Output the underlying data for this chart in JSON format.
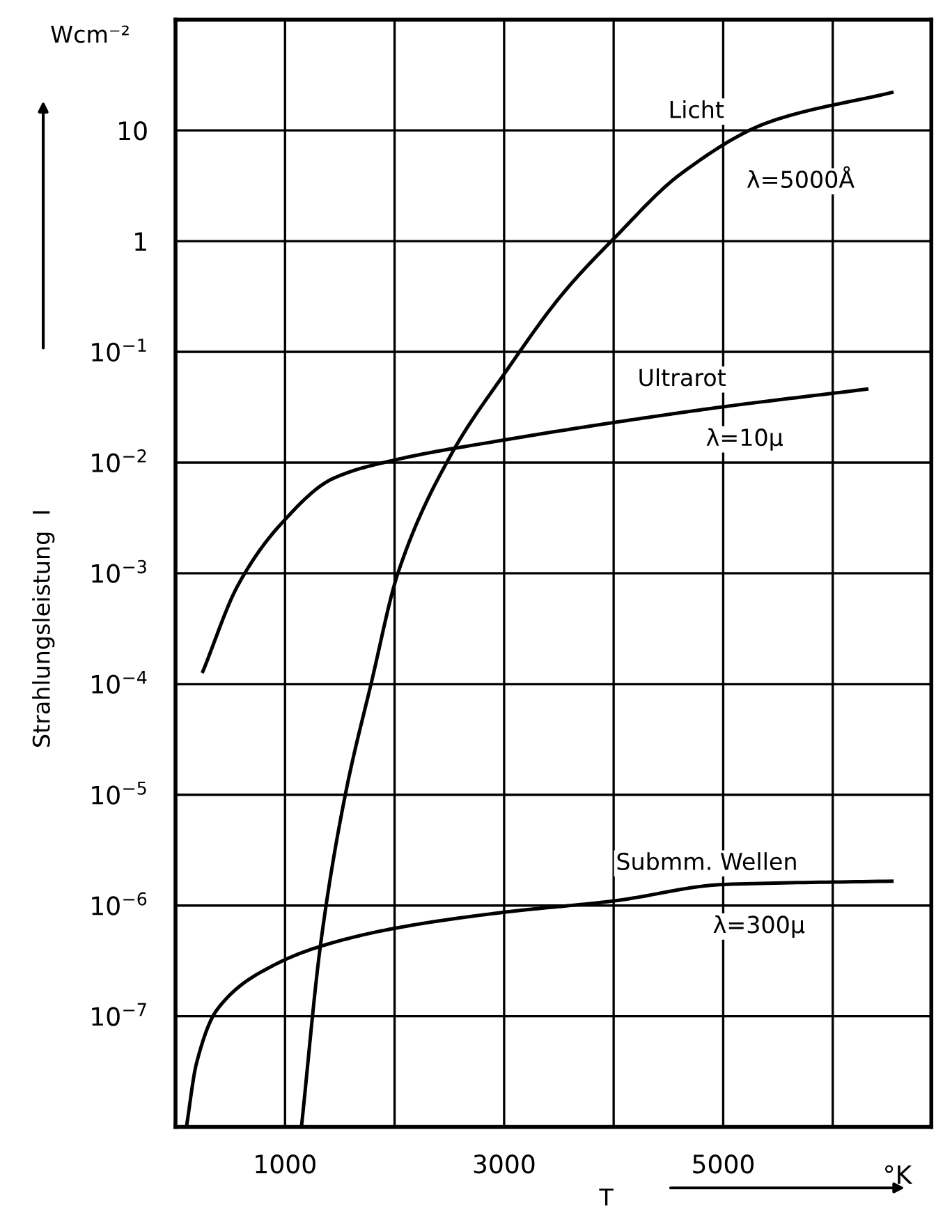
{
  "chart_data": {
    "type": "line",
    "xlabel": "T",
    "ylabel": "Strahlungsleistung  I",
    "series": [
      {
        "color": "#000000",
        "x": [
          1150,
          1325,
          1550,
          1790,
          2030,
          2520,
          3000,
          3540,
          4000,
          4620,
          5430,
          6540
        ],
        "values": [
          1e-08,
          4.5e-07,
          1e-05,
          0.000105,
          0.001,
          0.012,
          0.063,
          0.34,
          1.05,
          4.1,
          12,
          22
        ]
      },
      {
        "color": "#000000",
        "x": [
          250,
          570,
          950,
          1440,
          1990,
          3000,
          4000,
          5010,
          6310
        ],
        "values": [
          0.00013,
          0.00078,
          0.0027,
          0.0072,
          0.0105,
          0.016,
          0.023,
          0.032,
          0.046
        ]
      },
      {
        "color": "#000000",
        "x": [
          100,
          190,
          380,
          900,
          1330,
          1990,
          3000,
          4000,
          5010,
          6540
        ],
        "values": [
          1e-08,
          3.7e-08,
          1.15e-07,
          2.9e-07,
          4.3e-07,
          6.2e-07,
          8.7e-07,
          1.1e-06,
          1.55e-06,
          1.66e-06
        ]
      }
    ],
    "annotations": [
      "Wcm⁻²",
      "°K",
      "Licht",
      "λ=5000Å",
      "Ultrarot",
      "λ=10μ",
      "Submm. Wellen",
      "λ=300μ"
    ],
    "log": "y",
    "xlim": [
      0,
      6900
    ],
    "ylim": [
      1e-08,
      100
    ],
    "xticks": [
      {
        "value": 1000,
        "label": "1000"
      },
      {
        "value": 2000,
        "label": null
      },
      {
        "value": 3000,
        "label": "3000"
      },
      {
        "value": 4000,
        "label": null
      },
      {
        "value": 5000,
        "label": "5000"
      },
      {
        "value": 6000,
        "label": null
      }
    ],
    "yticks": [
      {
        "value": 1e-08,
        "label": null
      },
      {
        "value": 1e-07,
        "label": "10$^{−7}$"
      },
      {
        "value": 1e-06,
        "label": "10$^{−6}$"
      },
      {
        "value": 1e-05,
        "label": "10$^{−5}$"
      },
      {
        "value": 0.0001,
        "label": "10$^{−4}$"
      },
      {
        "value": 0.001,
        "label": "10$^{−3}$"
      },
      {
        "value": 0.01,
        "label": "10$^{−2}$"
      },
      {
        "value": 0.1,
        "label": "10$^{−1}$"
      },
      {
        "value": 1,
        "label": "1"
      },
      {
        "value": 10,
        "label": "10"
      },
      {
        "value": 100,
        "label": null
      }
    ],
    "grid": true,
    "line_style": "solid",
    "legend": false
  }
}
